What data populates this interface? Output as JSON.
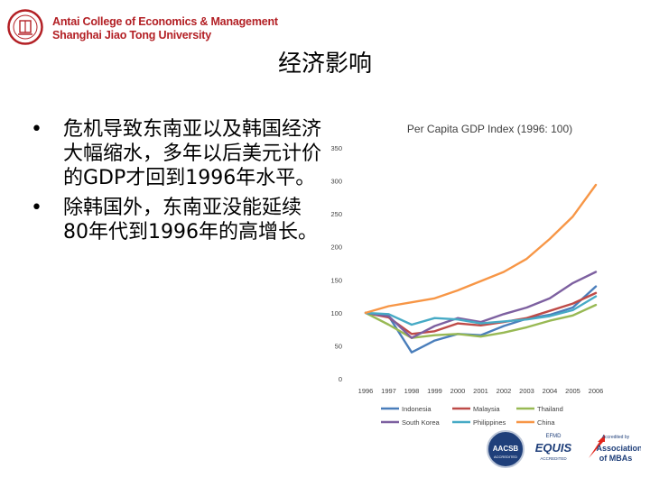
{
  "header": {
    "school_line1": "Antai College of Economics & Management",
    "school_line2": "Shanghai Jiao Tong University"
  },
  "slide": {
    "title": "经济影响",
    "bullets": [
      "危机导致东南亚以及韩国经济大幅缩水，多年以后美元计价的GDP才回到1996年水平。",
      "除韩国外，东南亚没能延续80年代到1996年的高增长。"
    ],
    "bullet_symbol": "•"
  },
  "chart_data": {
    "type": "line",
    "title": "Per Capita GDP Index (1996: 100)",
    "xlabel": "",
    "ylabel": "",
    "x": [
      "1996",
      "1997",
      "1998",
      "1999",
      "2000",
      "2001",
      "2002",
      "2003",
      "2004",
      "2005",
      "2006"
    ],
    "ylim": [
      0,
      350
    ],
    "yticks": [
      0,
      50,
      100,
      150,
      200,
      250,
      300,
      350
    ],
    "grid": false,
    "legend_position": "bottom",
    "series": [
      {
        "name": "Indonesia",
        "color": "#4a7ebb",
        "values": [
          100,
          95,
          40,
          58,
          68,
          66,
          80,
          91,
          97,
          108,
          140
        ]
      },
      {
        "name": "Malaysia",
        "color": "#be4b48",
        "values": [
          100,
          93,
          68,
          72,
          84,
          81,
          86,
          92,
          103,
          114,
          130
        ]
      },
      {
        "name": "Thailand",
        "color": "#98b954",
        "values": [
          100,
          82,
          62,
          66,
          68,
          64,
          70,
          78,
          88,
          96,
          112
        ]
      },
      {
        "name": "South Korea",
        "color": "#7d60a0",
        "values": [
          100,
          95,
          62,
          80,
          92,
          86,
          98,
          108,
          122,
          145,
          162
        ]
      },
      {
        "name": "Philippines",
        "color": "#46aac5",
        "values": [
          100,
          98,
          82,
          92,
          90,
          84,
          87,
          90,
          95,
          104,
          125
        ]
      },
      {
        "name": "China",
        "color": "#f79646",
        "values": [
          100,
          110,
          116,
          122,
          134,
          148,
          162,
          182,
          212,
          246,
          294
        ]
      }
    ]
  },
  "accreditation": {
    "aacsb": "AACSB",
    "aacsb_sub": "ACCREDITED",
    "efmd": "EFMD",
    "equis": "EQUIS",
    "equis_sub": "ACCREDITED",
    "amba_top": "Accredited by",
    "amba_line1": "Association",
    "amba_line2": "of MBAs"
  }
}
